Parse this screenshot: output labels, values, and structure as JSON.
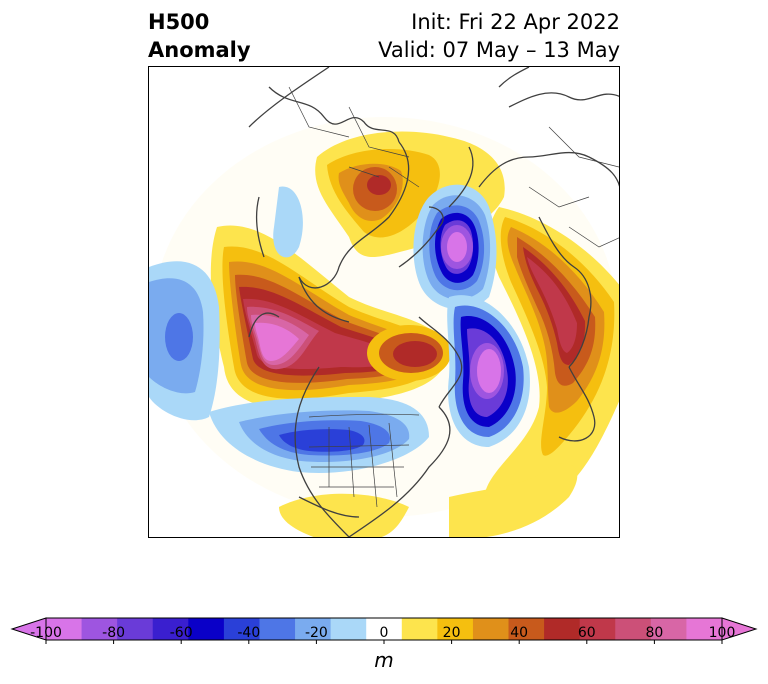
{
  "title": {
    "left_line1": "H500",
    "left_line2": "Anomaly",
    "right_line1": "Init: Fri 22 Apr 2022",
    "right_line2": "Valid: 07 May – 13 May"
  },
  "colorbar": {
    "unit": "m",
    "ticks": [
      "-100",
      "-80",
      "-60",
      "-40",
      "-20",
      "0",
      "20",
      "40",
      "60",
      "80",
      "100"
    ],
    "colors": [
      "#d874e8",
      "#9e55e0",
      "#6a3bd8",
      "#3a1fcf",
      "#0a00c8",
      "#2a40d8",
      "#4e76e6",
      "#7aabef",
      "#aad8f8",
      "#ffffff",
      "#fde44d",
      "#f5bf0f",
      "#e0901a",
      "#c85a1c",
      "#b02a28",
      "#c0384a",
      "#cc5078",
      "#d866a6",
      "#e676d6"
    ],
    "range": [
      -100,
      100
    ]
  },
  "map": {
    "features": [
      "h500-anomaly-field",
      "coastlines",
      "country-borders",
      "state-borders"
    ]
  }
}
